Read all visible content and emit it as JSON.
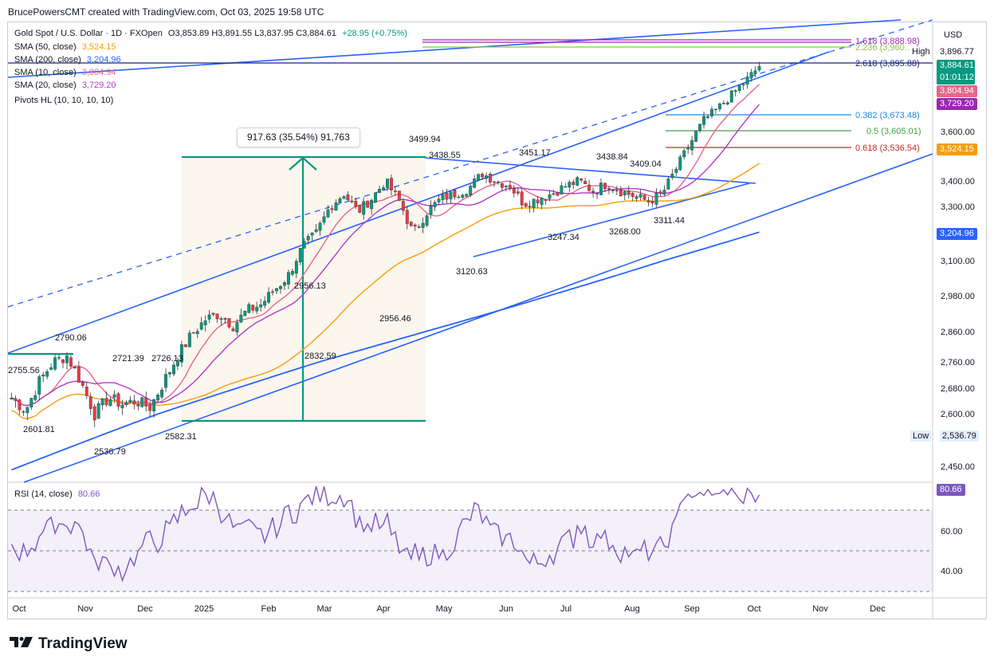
{
  "header": {
    "credit": "BrucePowersCMT created with TradingView.com, Oct 03, 2025 19:58 UTC"
  },
  "legend": {
    "title": "Gold Spot / U.S. Dollar · 1D · FXOpen",
    "ohlc": [
      {
        "k": "O",
        "v": "3,853.89"
      },
      {
        "k": "H",
        "v": "3,891.55"
      },
      {
        "k": "L",
        "v": "3,837.95"
      },
      {
        "k": "C",
        "v": "3,884.61"
      }
    ],
    "change": "+28.95 (+0.75%)",
    "indicators": [
      {
        "label": "SMA (50, close)",
        "value": "3,524.15",
        "color": "#f59e0b"
      },
      {
        "label": "SMA (200, close)",
        "value": "3,204.96",
        "color": "#2962ff"
      },
      {
        "label": "SMA (10, close)",
        "value": "3,804.94",
        "color": "#e6668a"
      },
      {
        "label": "SMA (20, close)",
        "value": "3,729.20",
        "color": "#b03cc8"
      },
      {
        "label": "Pivots HL (10, 10, 10, 10)",
        "value": "",
        "color": "#131722"
      }
    ]
  },
  "axis": {
    "currency": "USD",
    "price_ticks": [
      "3,600.00",
      "3,400.00",
      "3,300.00",
      "3,100.00",
      "2,980.00",
      "2,860.00",
      "2,760.00",
      "2,680.00",
      "2,600.00",
      "2,450.00"
    ],
    "rsi_ticks": [
      "60.00",
      "40.00"
    ],
    "x_ticks": [
      "Oct",
      "Nov",
      "Dec",
      "2025",
      "Feb",
      "Mar",
      "Apr",
      "May",
      "Jun",
      "Jul",
      "Aug",
      "Sep",
      "Oct",
      "Nov",
      "Dec"
    ]
  },
  "price_labels": {
    "high_label": "High",
    "high_value": "3,896.77",
    "last": "3,884.61",
    "countdown": "01:01:12",
    "sma10": "3,804.94",
    "sma20": "3,729.20",
    "sma50": "3,524.15",
    "sma200": "3,204.96",
    "low_label": "Low",
    "low_value": "2,536.79",
    "rsi": "80.66"
  },
  "fib": [
    {
      "label": "1.618 (3,888.98)",
      "color": "#9c27b0"
    },
    {
      "label": "2.236 (3,960.…)",
      "color": "#8bc34a"
    },
    {
      "label": "2.618 (3,895.88)",
      "color": "#1a237e"
    },
    {
      "label": "0.382 (3,673.48)",
      "color": "#1e88e5"
    },
    {
      "label": "0.5 (3,605.01)",
      "color": "#43a047"
    },
    {
      "label": "0.618 (3,536.54)",
      "color": "#c62828"
    }
  ],
  "measure": {
    "label": "917.63 (35.54%) 91,763",
    "color": "#089981"
  },
  "pivots": [
    "3499.94",
    "3438.55",
    "3451.17",
    "3438.84",
    "3409.04",
    "3311.44",
    "3268.00",
    "3247.34",
    "3120.63",
    "2956.13",
    "2956.46",
    "2832.59",
    "2790.06",
    "2721.39",
    "2726.13",
    "2601.81",
    "2582.31",
    "2536.79",
    "2755.56"
  ],
  "rsi_label": "RSI (14, close)",
  "rsi_value": "80.66",
  "brand": "TradingView",
  "colors": {
    "bull": "#089981",
    "bear": "#f23645",
    "channel": "#2962ff",
    "rsi": "#7e57c2"
  },
  "chart_data": {
    "type": "candlestick",
    "title": "Gold Spot / U.S. Dollar · 1D · FXOpen",
    "x": [
      "Oct",
      "Nov",
      "Dec",
      "2025",
      "Feb",
      "Mar",
      "Apr",
      "May",
      "Jun",
      "Jul",
      "Aug",
      "Sep",
      "Oct"
    ],
    "close_path": [
      2650,
      2610,
      2700,
      2760,
      2780,
      2700,
      2600,
      2650,
      2630,
      2640,
      2620,
      2700,
      2780,
      2850,
      2900,
      2920,
      2880,
      2930,
      2950,
      3000,
      3050,
      3150,
      3200,
      3300,
      3350,
      3280,
      3330,
      3400,
      3320,
      3200,
      3280,
      3330,
      3350,
      3370,
      3430,
      3400,
      3380,
      3310,
      3330,
      3350,
      3380,
      3400,
      3360,
      3390,
      3360,
      3340,
      3320,
      3350,
      3450,
      3550,
      3650,
      3700,
      3760,
      3820,
      3884
    ],
    "sma_levels": {
      "sma50": 3524.15,
      "sma200": 3204.96,
      "sma10": 3804.94,
      "sma20": 3729.2
    },
    "range": {
      "high": 3896.77,
      "low": 2536.79
    },
    "rsi_last": 80.66,
    "ylim": [
      2440,
      3990
    ]
  }
}
